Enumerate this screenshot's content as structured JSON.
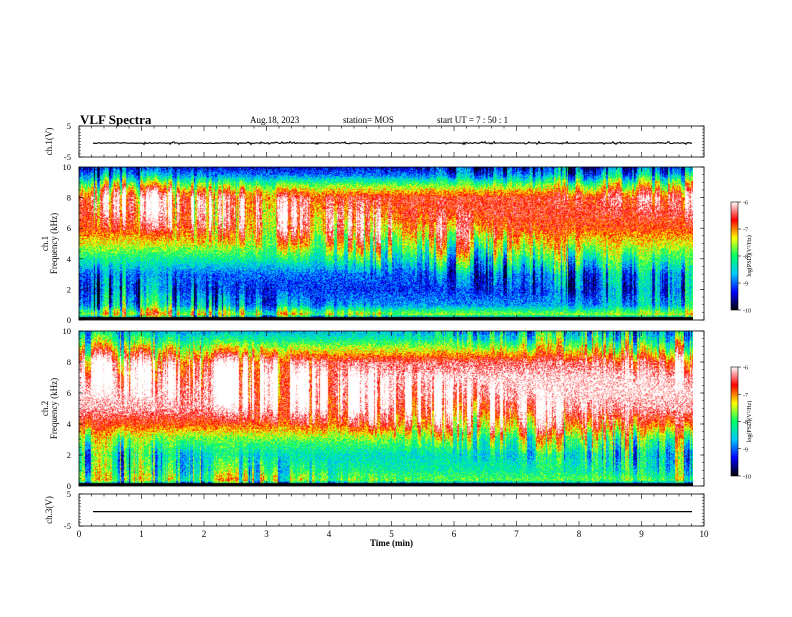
{
  "header": {
    "title": "VLF Spectra",
    "date": "Aug.18, 2023",
    "station": "station= MOS",
    "start": "start  UT =   7 : 50 : 1"
  },
  "colors": {
    "background": "#ffffff",
    "axis": "#000000",
    "colormap": [
      "#000000",
      "#0000ff",
      "#00c8ff",
      "#00ff66",
      "#ffff00",
      "#ff0000",
      "#ffffff"
    ]
  },
  "chart_data": [
    {
      "type": "line",
      "name": "ch1-waveform",
      "ylabel": "ch.1(V)",
      "ylim": [
        -5,
        5
      ],
      "yticks": [
        "5",
        "-5"
      ],
      "xlim": [
        0,
        10
      ],
      "trace_level": -0.5
    },
    {
      "type": "heatmap",
      "name": "ch1-spectrogram",
      "ylabel_top": "ch.1",
      "ylabel": "Frequency (kHz)",
      "ylim": [
        0,
        10
      ],
      "yticks": [
        "0",
        "2",
        "4",
        "6",
        "8",
        "10"
      ],
      "xlim": [
        0,
        10
      ],
      "data_end_min": 9.82,
      "colorbar": {
        "label": "log(PSD)(V²/Hz)",
        "range": [
          -10,
          -6
        ],
        "ticks": [
          "-6",
          "-7",
          "-8",
          "-9",
          "-10"
        ]
      },
      "profile_freq_khz": [
        0,
        0.4,
        1,
        2,
        3,
        4,
        5,
        6,
        7,
        8,
        8.5,
        9,
        9.5,
        10
      ],
      "profile_log_psd": [
        -10,
        -7.6,
        -8.8,
        -9.2,
        -9.0,
        -8.2,
        -7.4,
        -6.8,
        -6.6,
        -6.6,
        -7.2,
        -8.0,
        -8.9,
        -9.4
      ]
    },
    {
      "type": "heatmap",
      "name": "ch2-spectrogram",
      "ylabel_top": "ch.2",
      "ylabel": "Frequency (kHz)",
      "ylim": [
        0,
        10
      ],
      "yticks": [
        "0",
        "2",
        "4",
        "6",
        "8",
        "10"
      ],
      "xlim": [
        0,
        10
      ],
      "data_end_min": 9.82,
      "colorbar": {
        "label": "log(PSD)(V²/Hz)",
        "range": [
          -10,
          -6
        ],
        "ticks": [
          "-6",
          "-7",
          "-8",
          "-9",
          "-10"
        ]
      },
      "profile_freq_khz": [
        0,
        0.4,
        1,
        2,
        3,
        4,
        5,
        6,
        7,
        8,
        9,
        9.5,
        10
      ],
      "profile_log_psd": [
        -10,
        -7.8,
        -8.2,
        -8.4,
        -7.8,
        -6.8,
        -6.2,
        -6.0,
        -6.0,
        -6.4,
        -7.6,
        -8.2,
        -8.6
      ]
    },
    {
      "type": "line",
      "name": "ch3-waveform",
      "ylabel": "ch.3(V)",
      "ylim": [
        -5,
        5
      ],
      "yticks": [
        "5",
        "-5"
      ],
      "xlim": [
        0,
        10
      ],
      "trace_level": -0.5
    }
  ],
  "xaxis": {
    "label": "Time (min)",
    "ticks": [
      "0",
      "1",
      "2",
      "3",
      "4",
      "5",
      "6",
      "7",
      "8",
      "9",
      "10"
    ]
  }
}
